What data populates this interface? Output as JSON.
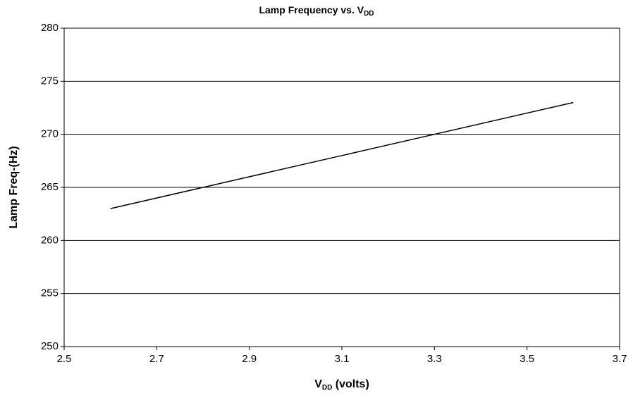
{
  "chart_data": {
    "type": "line",
    "title": {
      "text": "Lamp Frequency vs. V",
      "subscript": "DD"
    },
    "x_label": {
      "text": "V",
      "subscript": "DD",
      "suffix": " (volts)"
    },
    "y_label": "Lamp Freq-(Hz)",
    "x": [
      2.6,
      3.1,
      3.6
    ],
    "series": [
      {
        "name": "Lamp Freq",
        "color": "#000000",
        "values": [
          263,
          268,
          273
        ]
      }
    ],
    "xlim": [
      2.5,
      3.7
    ],
    "xticks": [
      2.5,
      2.7,
      2.9,
      3.1,
      3.3,
      3.5,
      3.7
    ],
    "ylim": [
      250,
      280
    ],
    "yticks": [
      250,
      255,
      260,
      265,
      270,
      275,
      280
    ],
    "grid": true
  }
}
